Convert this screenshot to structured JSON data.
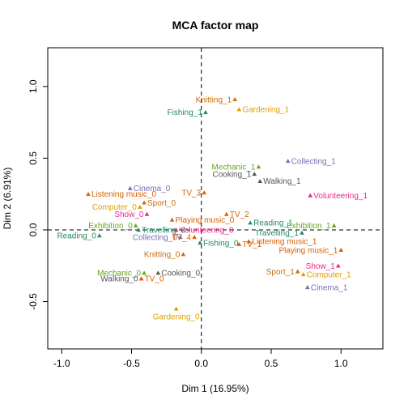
{
  "chart_data": {
    "type": "scatter",
    "title": "MCA factor map",
    "xlabel": "Dim 1 (16.95%)",
    "ylabel": "Dim 2 (6.91%)",
    "xlim": [
      -1.1,
      1.3
    ],
    "ylim": [
      -0.83,
      1.27
    ],
    "x_ticks": [
      -1.0,
      -0.5,
      0.0,
      0.5,
      1.0
    ],
    "x_tick_labels": [
      "-1.0",
      "-0.5",
      "0.0",
      "0.5",
      "1.0"
    ],
    "y_ticks": [
      -0.5,
      0.0,
      0.5,
      1.0
    ],
    "y_tick_labels": [
      "-0.5",
      "0.0",
      "0.5",
      "1.0"
    ],
    "reference_lines": {
      "x": 0,
      "y": 0,
      "style": "dashed"
    },
    "grid": false,
    "points": [
      {
        "label": "Knitting_1",
        "x": 0.24,
        "y": 0.91,
        "color": "#c8700c",
        "label_pos": "left"
      },
      {
        "label": "Fishing_1",
        "x": 0.03,
        "y": 0.82,
        "color": "#218a63",
        "label_pos": "left"
      },
      {
        "label": "Gardening_1",
        "x": 0.27,
        "y": 0.84,
        "color": "#e0a000",
        "label_pos": "right"
      },
      {
        "label": "Collecting_1",
        "x": 0.62,
        "y": 0.48,
        "color": "#7570b3",
        "label_pos": "right"
      },
      {
        "label": "Mechanic_1",
        "x": 0.41,
        "y": 0.44,
        "color": "#66a61e",
        "label_pos": "left"
      },
      {
        "label": "Cooking_1",
        "x": 0.38,
        "y": 0.39,
        "color": "#555555",
        "label_pos": "left"
      },
      {
        "label": "Walking_1",
        "x": 0.42,
        "y": 0.34,
        "color": "#555555",
        "label_pos": "right"
      },
      {
        "label": "Cinema_0",
        "x": -0.51,
        "y": 0.29,
        "color": "#7570b3",
        "label_pos": "right"
      },
      {
        "label": "TV_3",
        "x": 0.02,
        "y": 0.26,
        "color": "#d95f02",
        "label_pos": "left"
      },
      {
        "label": "Volunteering_1",
        "x": 0.78,
        "y": 0.24,
        "color": "#e7298a",
        "label_pos": "right"
      },
      {
        "label": "Listening music_0",
        "x": -0.81,
        "y": 0.25,
        "color": "#d95f02",
        "label_pos": "right"
      },
      {
        "label": "Sport_0",
        "x": -0.41,
        "y": 0.19,
        "color": "#c8700c",
        "label_pos": "right"
      },
      {
        "label": "Computer_0",
        "x": -0.44,
        "y": 0.16,
        "color": "#e0a000",
        "label_pos": "left"
      },
      {
        "label": "TV_2",
        "x": 0.18,
        "y": 0.11,
        "color": "#d95f02",
        "label_pos": "right"
      },
      {
        "label": "Show_0",
        "x": -0.39,
        "y": 0.11,
        "color": "#e7298a",
        "label_pos": "left"
      },
      {
        "label": "Playing music_0",
        "x": -0.21,
        "y": 0.07,
        "color": "#d95f02",
        "label_pos": "right"
      },
      {
        "label": "Reading_1",
        "x": 0.35,
        "y": 0.05,
        "color": "#218a63",
        "label_pos": "right"
      },
      {
        "label": "Exhibition_1",
        "x": 0.95,
        "y": 0.03,
        "color": "#66a61e",
        "label_pos": "left"
      },
      {
        "label": "Exhibition_0",
        "x": -0.47,
        "y": 0.03,
        "color": "#66a61e",
        "label_pos": "left"
      },
      {
        "label": "Travelling_0",
        "x": -0.45,
        "y": 0.0,
        "color": "#218a63",
        "label_pos": "right"
      },
      {
        "label": "Volunteering_0",
        "x": -0.18,
        "y": 0.0,
        "color": "#e7298a",
        "label_pos": "right"
      },
      {
        "label": "Travelling_1",
        "x": 0.72,
        "y": -0.02,
        "color": "#218a63",
        "label_pos": "left"
      },
      {
        "label": "Reading_0",
        "x": -0.73,
        "y": -0.04,
        "color": "#218a63",
        "label_pos": "left"
      },
      {
        "label": "Collecting_0",
        "x": -0.15,
        "y": -0.05,
        "color": "#7570b3",
        "label_pos": "left"
      },
      {
        "label": "TV_4",
        "x": -0.05,
        "y": -0.05,
        "color": "#d95f02",
        "label_pos": "left"
      },
      {
        "label": "Fishing_0",
        "x": -0.01,
        "y": -0.09,
        "color": "#218a63",
        "label_pos": "right"
      },
      {
        "label": "TV_1",
        "x": 0.27,
        "y": -0.1,
        "color": "#d95f02",
        "label_pos": "right"
      },
      {
        "label": "Listening music_1",
        "x": 0.34,
        "y": -0.08,
        "color": "#d95f02",
        "label_pos": "right"
      },
      {
        "label": "Playing music_1",
        "x": 1.0,
        "y": -0.14,
        "color": "#d95f02",
        "label_pos": "left"
      },
      {
        "label": "Knitting_0",
        "x": -0.13,
        "y": -0.17,
        "color": "#c8700c",
        "label_pos": "left"
      },
      {
        "label": "Show_1",
        "x": 0.98,
        "y": -0.25,
        "color": "#e7298a",
        "label_pos": "left"
      },
      {
        "label": "Cooking_0",
        "x": -0.31,
        "y": -0.3,
        "color": "#555555",
        "label_pos": "right"
      },
      {
        "label": "Mechanic_0",
        "x": -0.41,
        "y": -0.3,
        "color": "#66a61e",
        "label_pos": "left"
      },
      {
        "label": "Sport_1",
        "x": 0.69,
        "y": -0.29,
        "color": "#c8700c",
        "label_pos": "left"
      },
      {
        "label": "Computer_1",
        "x": 0.73,
        "y": -0.31,
        "color": "#e0a000",
        "label_pos": "right"
      },
      {
        "label": "Walking_0",
        "x": -0.43,
        "y": -0.34,
        "color": "#555555",
        "label_pos": "left"
      },
      {
        "label": "TV_0",
        "x": -0.43,
        "y": -0.34,
        "color": "#d95f02",
        "label_pos": "right"
      },
      {
        "label": "Cinema_1",
        "x": 0.76,
        "y": -0.4,
        "color": "#7570b3",
        "label_pos": "right"
      },
      {
        "label": "Gardening_0",
        "x": -0.18,
        "y": -0.55,
        "color": "#e0a000",
        "label_pos": "below"
      }
    ]
  }
}
